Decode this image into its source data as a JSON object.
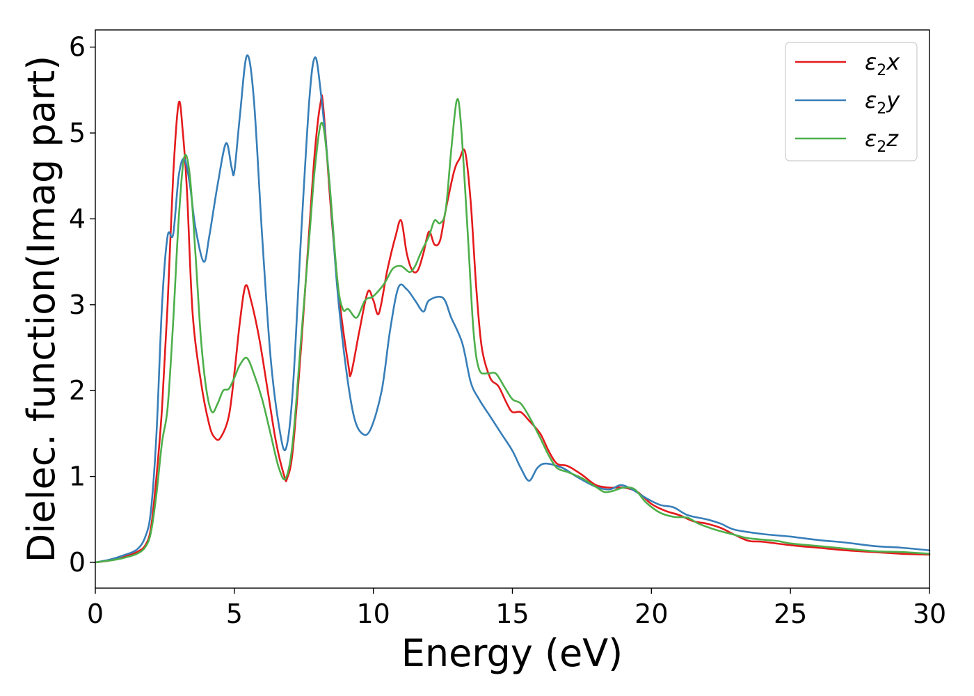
{
  "chart_data": {
    "type": "line",
    "title": "",
    "xlabel": "Energy (eV)",
    "ylabel": "Dielec. function(Imag part)",
    "xlim": [
      0,
      30
    ],
    "ylim": [
      -0.3,
      6.2
    ],
    "x_ticks": [
      "0",
      "5",
      "10",
      "15",
      "20",
      "25",
      "30"
    ],
    "y_ticks": [
      "0",
      "1",
      "2",
      "3",
      "4",
      "5",
      "6"
    ],
    "grid": false,
    "legend_position": "top-right",
    "series": [
      {
        "name": "ε2x",
        "legend_base": "ε",
        "legend_sub": "2",
        "legend_var": "x",
        "color": "#e41a1c",
        "points": [
          [
            0,
            0
          ],
          [
            0.5,
            0.02
          ],
          [
            1.0,
            0.06
          ],
          [
            1.5,
            0.12
          ],
          [
            1.8,
            0.2
          ],
          [
            2.0,
            0.4
          ],
          [
            2.2,
            1.0
          ],
          [
            2.4,
            1.8
          ],
          [
            2.6,
            3.0
          ],
          [
            2.8,
            4.5
          ],
          [
            3.0,
            5.35
          ],
          [
            3.15,
            5.0
          ],
          [
            3.3,
            4.3
          ],
          [
            3.5,
            2.9
          ],
          [
            3.8,
            2.1
          ],
          [
            4.1,
            1.6
          ],
          [
            4.3,
            1.45
          ],
          [
            4.5,
            1.45
          ],
          [
            4.8,
            1.7
          ],
          [
            5.0,
            2.2
          ],
          [
            5.2,
            2.8
          ],
          [
            5.4,
            3.22
          ],
          [
            5.6,
            3.05
          ],
          [
            5.9,
            2.6
          ],
          [
            6.2,
            2.0
          ],
          [
            6.5,
            1.4
          ],
          [
            6.8,
            1.0
          ],
          [
            6.9,
            0.98
          ],
          [
            7.1,
            1.3
          ],
          [
            7.4,
            2.5
          ],
          [
            7.7,
            3.9
          ],
          [
            7.9,
            4.8
          ],
          [
            8.1,
            5.35
          ],
          [
            8.2,
            5.3
          ],
          [
            8.5,
            4.0
          ],
          [
            8.8,
            3.0
          ],
          [
            9.1,
            2.3
          ],
          [
            9.2,
            2.2
          ],
          [
            9.5,
            2.7
          ],
          [
            9.8,
            3.15
          ],
          [
            10.0,
            3.05
          ],
          [
            10.2,
            2.9
          ],
          [
            10.5,
            3.4
          ],
          [
            10.8,
            3.8
          ],
          [
            11.0,
            3.98
          ],
          [
            11.2,
            3.6
          ],
          [
            11.4,
            3.4
          ],
          [
            11.6,
            3.4
          ],
          [
            11.8,
            3.6
          ],
          [
            12.0,
            3.85
          ],
          [
            12.2,
            3.7
          ],
          [
            12.4,
            3.75
          ],
          [
            12.6,
            4.1
          ],
          [
            12.9,
            4.55
          ],
          [
            13.1,
            4.7
          ],
          [
            13.3,
            4.78
          ],
          [
            13.5,
            4.2
          ],
          [
            13.7,
            3.2
          ],
          [
            13.9,
            2.5
          ],
          [
            14.2,
            2.15
          ],
          [
            14.5,
            2.05
          ],
          [
            14.8,
            1.85
          ],
          [
            15.0,
            1.75
          ],
          [
            15.3,
            1.75
          ],
          [
            15.6,
            1.65
          ],
          [
            16.0,
            1.5
          ],
          [
            16.3,
            1.3
          ],
          [
            16.6,
            1.15
          ],
          [
            17.0,
            1.12
          ],
          [
            17.5,
            1.02
          ],
          [
            18.0,
            0.9
          ],
          [
            18.5,
            0.87
          ],
          [
            19.0,
            0.87
          ],
          [
            19.5,
            0.82
          ],
          [
            20.0,
            0.68
          ],
          [
            20.5,
            0.6
          ],
          [
            21.0,
            0.55
          ],
          [
            21.5,
            0.48
          ],
          [
            22.0,
            0.45
          ],
          [
            22.5,
            0.4
          ],
          [
            23.0,
            0.32
          ],
          [
            23.5,
            0.25
          ],
          [
            24.0,
            0.24
          ],
          [
            25.0,
            0.2
          ],
          [
            26.0,
            0.17
          ],
          [
            27.0,
            0.14
          ],
          [
            28.0,
            0.12
          ],
          [
            29.0,
            0.1
          ],
          [
            30.0,
            0.09
          ]
        ]
      },
      {
        "name": "ε2y",
        "legend_base": "ε",
        "legend_sub": "2",
        "legend_var": "y",
        "color": "#377eb8",
        "points": [
          [
            0,
            0
          ],
          [
            0.5,
            0.03
          ],
          [
            1.0,
            0.08
          ],
          [
            1.5,
            0.15
          ],
          [
            1.8,
            0.3
          ],
          [
            2.0,
            0.6
          ],
          [
            2.2,
            1.5
          ],
          [
            2.4,
            3.0
          ],
          [
            2.6,
            3.8
          ],
          [
            2.8,
            3.82
          ],
          [
            3.0,
            4.5
          ],
          [
            3.2,
            4.7
          ],
          [
            3.4,
            4.4
          ],
          [
            3.6,
            3.9
          ],
          [
            3.9,
            3.5
          ],
          [
            4.1,
            3.8
          ],
          [
            4.4,
            4.4
          ],
          [
            4.7,
            4.88
          ],
          [
            4.9,
            4.6
          ],
          [
            5.0,
            4.55
          ],
          [
            5.2,
            5.2
          ],
          [
            5.45,
            5.9
          ],
          [
            5.7,
            5.4
          ],
          [
            6.0,
            3.8
          ],
          [
            6.3,
            2.4
          ],
          [
            6.6,
            1.6
          ],
          [
            6.85,
            1.32
          ],
          [
            7.1,
            2.0
          ],
          [
            7.4,
            3.8
          ],
          [
            7.7,
            5.4
          ],
          [
            7.9,
            5.88
          ],
          [
            8.1,
            5.5
          ],
          [
            8.4,
            4.5
          ],
          [
            8.7,
            3.2
          ],
          [
            9.0,
            2.3
          ],
          [
            9.3,
            1.7
          ],
          [
            9.6,
            1.5
          ],
          [
            9.9,
            1.55
          ],
          [
            10.3,
            2.0
          ],
          [
            10.6,
            2.7
          ],
          [
            10.9,
            3.2
          ],
          [
            11.2,
            3.18
          ],
          [
            11.5,
            3.05
          ],
          [
            11.8,
            2.92
          ],
          [
            12.0,
            3.05
          ],
          [
            12.5,
            3.08
          ],
          [
            12.8,
            2.85
          ],
          [
            13.2,
            2.55
          ],
          [
            13.5,
            2.1
          ],
          [
            13.8,
            1.9
          ],
          [
            14.2,
            1.7
          ],
          [
            14.6,
            1.5
          ],
          [
            15.0,
            1.3
          ],
          [
            15.3,
            1.1
          ],
          [
            15.6,
            0.95
          ],
          [
            15.9,
            1.1
          ],
          [
            16.2,
            1.15
          ],
          [
            16.8,
            1.1
          ],
          [
            17.3,
            1.0
          ],
          [
            18.0,
            0.88
          ],
          [
            18.5,
            0.85
          ],
          [
            18.9,
            0.9
          ],
          [
            19.3,
            0.85
          ],
          [
            19.8,
            0.75
          ],
          [
            20.3,
            0.67
          ],
          [
            20.8,
            0.64
          ],
          [
            21.3,
            0.55
          ],
          [
            22.0,
            0.5
          ],
          [
            22.5,
            0.45
          ],
          [
            23.0,
            0.38
          ],
          [
            24.0,
            0.33
          ],
          [
            25.0,
            0.3
          ],
          [
            26.0,
            0.26
          ],
          [
            27.0,
            0.23
          ],
          [
            28.0,
            0.19
          ],
          [
            29.0,
            0.17
          ],
          [
            30.0,
            0.14
          ]
        ]
      },
      {
        "name": "ε2z",
        "legend_base": "ε",
        "legend_sub": "2",
        "legend_var": "z",
        "color": "#4daf4a",
        "points": [
          [
            0,
            0
          ],
          [
            0.5,
            0.02
          ],
          [
            1.0,
            0.05
          ],
          [
            1.5,
            0.1
          ],
          [
            1.8,
            0.18
          ],
          [
            2.0,
            0.35
          ],
          [
            2.2,
            0.8
          ],
          [
            2.4,
            1.4
          ],
          [
            2.6,
            1.8
          ],
          [
            2.8,
            2.8
          ],
          [
            3.0,
            4.0
          ],
          [
            3.2,
            4.72
          ],
          [
            3.4,
            4.5
          ],
          [
            3.6,
            3.6
          ],
          [
            3.8,
            2.6
          ],
          [
            4.0,
            2.0
          ],
          [
            4.2,
            1.75
          ],
          [
            4.4,
            1.85
          ],
          [
            4.6,
            2.0
          ],
          [
            4.8,
            2.02
          ],
          [
            5.0,
            2.15
          ],
          [
            5.2,
            2.3
          ],
          [
            5.45,
            2.38
          ],
          [
            5.7,
            2.2
          ],
          [
            6.0,
            1.9
          ],
          [
            6.3,
            1.5
          ],
          [
            6.6,
            1.1
          ],
          [
            6.85,
            0.98
          ],
          [
            7.1,
            1.4
          ],
          [
            7.4,
            2.6
          ],
          [
            7.7,
            3.8
          ],
          [
            7.9,
            4.6
          ],
          [
            8.15,
            5.12
          ],
          [
            8.4,
            4.5
          ],
          [
            8.7,
            3.3
          ],
          [
            8.9,
            2.95
          ],
          [
            9.1,
            2.95
          ],
          [
            9.4,
            2.85
          ],
          [
            9.7,
            3.05
          ],
          [
            10.0,
            3.1
          ],
          [
            10.4,
            3.25
          ],
          [
            10.7,
            3.42
          ],
          [
            11.0,
            3.45
          ],
          [
            11.3,
            3.38
          ],
          [
            11.5,
            3.45
          ],
          [
            11.7,
            3.6
          ],
          [
            12.0,
            3.8
          ],
          [
            12.2,
            3.98
          ],
          [
            12.4,
            3.95
          ],
          [
            12.6,
            4.1
          ],
          [
            12.8,
            4.8
          ],
          [
            13.0,
            5.38
          ],
          [
            13.15,
            5.1
          ],
          [
            13.4,
            3.8
          ],
          [
            13.6,
            2.7
          ],
          [
            13.8,
            2.25
          ],
          [
            14.1,
            2.2
          ],
          [
            14.4,
            2.2
          ],
          [
            14.7,
            2.05
          ],
          [
            15.0,
            1.9
          ],
          [
            15.3,
            1.85
          ],
          [
            15.6,
            1.7
          ],
          [
            16.0,
            1.45
          ],
          [
            16.3,
            1.25
          ],
          [
            16.6,
            1.1
          ],
          [
            17.0,
            1.05
          ],
          [
            17.5,
            0.98
          ],
          [
            18.0,
            0.88
          ],
          [
            18.3,
            0.82
          ],
          [
            18.6,
            0.83
          ],
          [
            19.0,
            0.87
          ],
          [
            19.4,
            0.85
          ],
          [
            19.8,
            0.7
          ],
          [
            20.3,
            0.58
          ],
          [
            20.8,
            0.53
          ],
          [
            21.3,
            0.52
          ],
          [
            21.7,
            0.45
          ],
          [
            22.3,
            0.38
          ],
          [
            23.0,
            0.32
          ],
          [
            23.5,
            0.28
          ],
          [
            24.5,
            0.25
          ],
          [
            25.0,
            0.22
          ],
          [
            26.0,
            0.19
          ],
          [
            27.0,
            0.16
          ],
          [
            28.0,
            0.13
          ],
          [
            29.0,
            0.12
          ],
          [
            30.0,
            0.1
          ]
        ]
      }
    ]
  }
}
